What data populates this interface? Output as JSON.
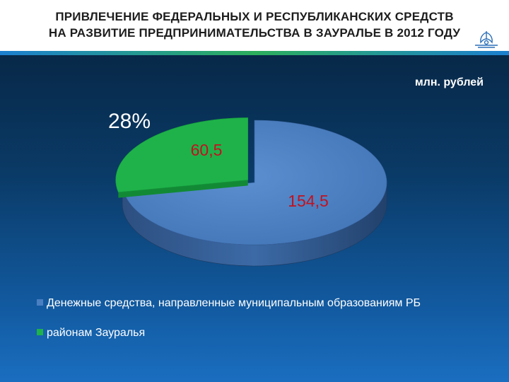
{
  "header": {
    "title_line1": "ПРИВЛЕЧЕНИЕ ФЕДЕРАЛЬНЫХ И РЕСПУБЛИКАНСКИХ СРЕДСТВ",
    "title_line2": "НА РАЗВИТИЕ ПРЕДПРИНИМАТЕЛЬСТВА В ЗАУРАЛЬЕ В 2012 ГОДУ",
    "emblem_icon": "emblem-icon"
  },
  "unit_label": "млн. рублей",
  "chart_data": {
    "type": "pie",
    "series": [
      {
        "name": "Денежные средства, направленные муниципальным образованиям РБ",
        "value": 154.5,
        "label": "154,5",
        "color": "#4a7fc1"
      },
      {
        "name": "районам Зауралья",
        "value": 60.5,
        "label": "60,5",
        "color": "#1fb24a"
      }
    ],
    "percent_label": "28%",
    "legend_position": "bottom",
    "three_d": true
  }
}
